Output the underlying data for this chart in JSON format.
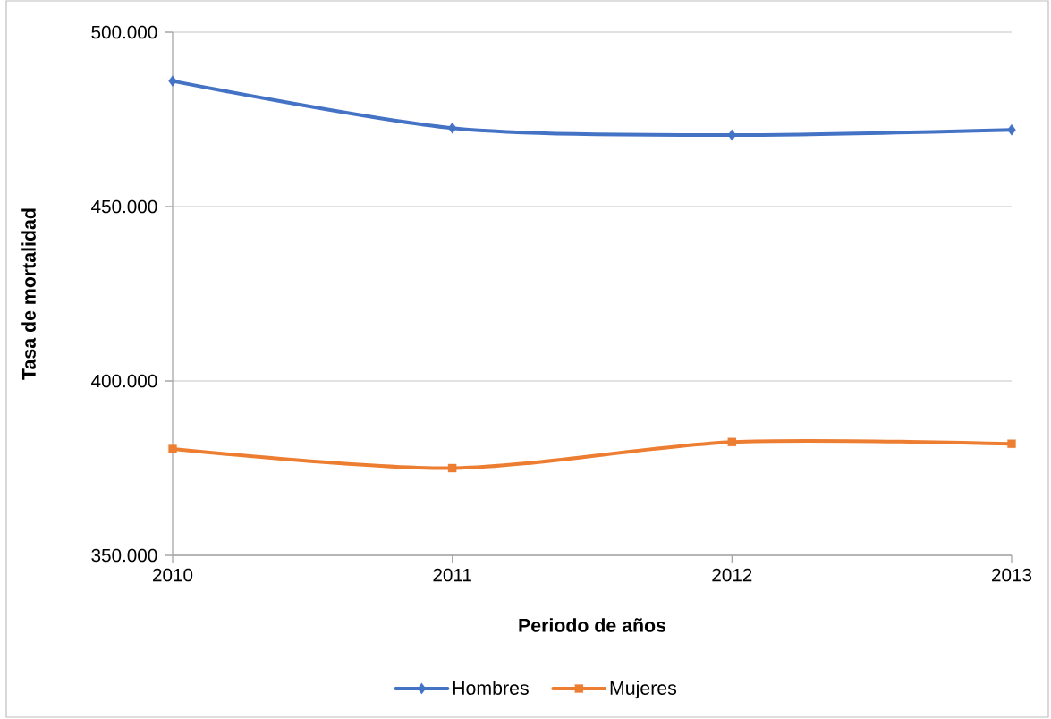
{
  "chart_data": {
    "type": "line",
    "xlabel": "Periodo de años",
    "ylabel": "Tasa de mortalidad",
    "categories": [
      "2010",
      "2011",
      "2012",
      "2013"
    ],
    "series": [
      {
        "name": "Hombres",
        "color": "#4472c4",
        "marker": "diamond",
        "values": [
          486000,
          472500,
          470500,
          472000
        ]
      },
      {
        "name": "Mujeres",
        "color": "#ed7d31",
        "marker": "square",
        "values": [
          380500,
          375000,
          382500,
          382000
        ]
      }
    ],
    "ylim": [
      350000,
      500000
    ],
    "yticks": [
      {
        "value": 350000,
        "label": "350.000"
      },
      {
        "value": 400000,
        "label": "400.000"
      },
      {
        "value": 450000,
        "label": "450.000"
      },
      {
        "value": 500000,
        "label": "500.000"
      }
    ],
    "grid": "y",
    "legend": "bottom",
    "line_style": "solid"
  }
}
